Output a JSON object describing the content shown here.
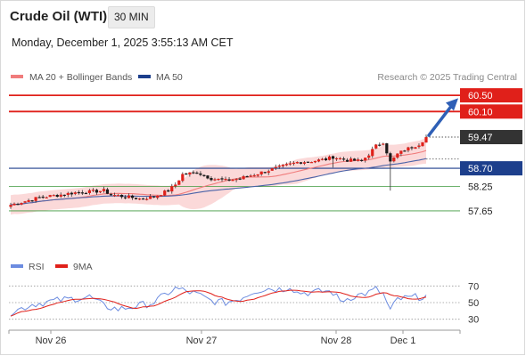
{
  "header": {
    "title": "Crude Oil (WTI)",
    "timeframe": "30 MIN",
    "datetime": "Monday, December 1, 2025 3:55:13 AM CET"
  },
  "legend": {
    "ma20": "MA 20 + Bollinger Bands",
    "ma50": "MA 50",
    "rsi": "RSI",
    "ma9": "9MA"
  },
  "source_credit": "Research © 2025 Trading Central",
  "colors": {
    "red": "#e0201a",
    "blue": "#1d3f8c",
    "green": "#3f9a3f",
    "ma20": "#f07c7c",
    "band": "#fbd9d9",
    "ma50": "#4a63a8",
    "rsi": "#6c8ce0",
    "rsi_ma": "#e0201a",
    "last_price_bg": "#333333",
    "arrow": "#2e5fb6"
  },
  "chart_data": [
    {
      "type": "candlestick",
      "instrument": "Crude Oil (WTI)",
      "timeframe": "30 MIN",
      "x_ticks": [
        "Nov 26",
        "Nov 27",
        "Nov 28",
        "Dec 1"
      ],
      "ylim": [
        57.1,
        60.7
      ],
      "levels": [
        {
          "value": 60.5,
          "label": "60.50",
          "kind": "resistance",
          "color": "#e0201a"
        },
        {
          "value": 60.1,
          "label": "60.10",
          "kind": "resistance",
          "color": "#e0201a"
        },
        {
          "value": 59.47,
          "label": "59.47",
          "kind": "last",
          "color": "#333333"
        },
        {
          "value": 58.7,
          "label": "58.70",
          "kind": "pivot",
          "color": "#1d3f8c"
        },
        {
          "value": 58.25,
          "label": "58.25",
          "kind": "support",
          "color": "#3f9a3f"
        },
        {
          "value": 57.65,
          "label": "57.65",
          "kind": "support",
          "color": "#3f9a3f"
        }
      ],
      "price_anchors": [
        [
          0,
          57.8
        ],
        [
          8,
          57.98
        ],
        [
          14,
          58.05
        ],
        [
          18,
          58.1
        ],
        [
          22,
          58.12
        ],
        [
          26,
          58.15
        ],
        [
          28,
          58.05
        ],
        [
          32,
          58.0
        ],
        [
          36,
          57.95
        ],
        [
          40,
          58.0
        ],
        [
          44,
          58.15
        ],
        [
          46,
          58.3
        ],
        [
          48,
          58.55
        ],
        [
          52,
          58.6
        ],
        [
          56,
          58.45
        ],
        [
          60,
          58.4
        ],
        [
          64,
          58.45
        ],
        [
          68,
          58.55
        ],
        [
          72,
          58.65
        ],
        [
          76,
          58.75
        ],
        [
          80,
          58.85
        ],
        [
          84,
          58.88
        ],
        [
          88,
          58.92
        ],
        [
          90,
          58.98
        ],
        [
          94,
          58.9
        ],
        [
          98,
          58.88
        ],
        [
          100,
          59.05
        ],
        [
          102,
          59.25
        ],
        [
          104,
          59.35
        ],
        [
          106,
          58.85
        ],
        [
          108,
          59.05
        ],
        [
          110,
          59.15
        ],
        [
          114,
          59.3
        ],
        [
          116,
          59.47
        ]
      ],
      "projection": {
        "from": 59.47,
        "to": 60.45,
        "direction": "up"
      },
      "overlays": [
        "MA 20 + Bollinger Bands",
        "MA 50"
      ]
    },
    {
      "type": "line",
      "indicator": "RSI",
      "series": [
        {
          "name": "RSI",
          "color": "#6c8ce0"
        },
        {
          "name": "9MA",
          "color": "#e0201a"
        }
      ],
      "ylim": [
        20,
        80
      ],
      "y_ticks": [
        70,
        50,
        30
      ],
      "reference_lines": [
        70,
        50,
        30
      ],
      "rsi_anchors": [
        [
          0,
          38
        ],
        [
          6,
          48
        ],
        [
          12,
          52
        ],
        [
          18,
          55
        ],
        [
          22,
          57
        ],
        [
          26,
          46
        ],
        [
          30,
          42
        ],
        [
          34,
          45
        ],
        [
          40,
          50
        ],
        [
          44,
          62
        ],
        [
          46,
          67
        ],
        [
          48,
          65
        ],
        [
          52,
          60
        ],
        [
          56,
          52
        ],
        [
          60,
          50
        ],
        [
          64,
          55
        ],
        [
          68,
          64
        ],
        [
          72,
          67
        ],
        [
          76,
          66
        ],
        [
          78,
          70
        ],
        [
          80,
          62
        ],
        [
          84,
          62
        ],
        [
          88,
          64
        ],
        [
          90,
          62
        ],
        [
          92,
          52
        ],
        [
          96,
          58
        ],
        [
          100,
          62
        ],
        [
          102,
          66
        ],
        [
          104,
          60
        ],
        [
          106,
          40
        ],
        [
          108,
          54
        ],
        [
          112,
          56
        ],
        [
          116,
          58
        ]
      ]
    }
  ]
}
